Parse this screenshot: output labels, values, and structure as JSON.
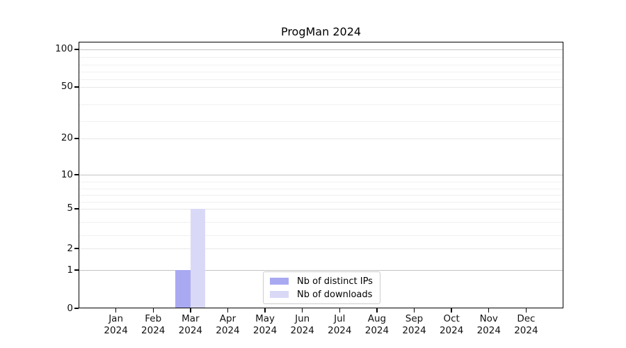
{
  "title": "ProgMan 2024",
  "chart_data": {
    "type": "bar",
    "title": "ProgMan 2024",
    "xlabel": "",
    "ylabel": "",
    "categories": [
      "Jan",
      "Feb",
      "Mar",
      "Apr",
      "May",
      "Jun",
      "Jul",
      "Aug",
      "Sep",
      "Oct",
      "Nov",
      "Dec"
    ],
    "x_year_label": "2024",
    "series": [
      {
        "name": "Nb of distinct IPs",
        "color": "#a9a9f2",
        "values": [
          0,
          0,
          1,
          0,
          0,
          0,
          0,
          0,
          0,
          0,
          0,
          0
        ]
      },
      {
        "name": "Nb of downloads",
        "color": "#d9d9f7",
        "values": [
          0,
          0,
          5,
          0,
          0,
          0,
          0,
          0,
          0,
          0,
          0,
          0
        ]
      }
    ],
    "yticks": [
      0,
      1,
      2,
      5,
      10,
      20,
      50,
      100
    ],
    "ytick_labels": [
      "0",
      "1",
      "2",
      "5",
      "10",
      "20",
      "50",
      "100"
    ],
    "minor_yticks": [
      3,
      4,
      6,
      7,
      8,
      9,
      30,
      40,
      60,
      70,
      80,
      90
    ],
    "emphasis_gridlines": [
      1,
      10,
      100
    ],
    "ylim": [
      0,
      110
    ],
    "scale": "quasi-log",
    "scale_anchors": [
      [
        0,
        0
      ],
      [
        1,
        0.1436
      ],
      [
        2,
        0.2245
      ],
      [
        5,
        0.3734
      ],
      [
        10,
        0.5013
      ],
      [
        20,
        0.6371
      ],
      [
        50,
        0.8303
      ],
      [
        100,
        0.9713
      ]
    ],
    "grid": "on",
    "legend_position": "lower-center"
  }
}
